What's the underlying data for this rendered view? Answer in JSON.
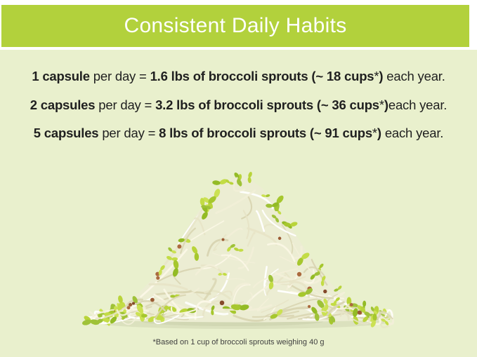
{
  "header": {
    "title": "Consistent Daily Habits"
  },
  "facts": [
    {
      "segments": [
        {
          "text": "1 capsule",
          "bold": true
        },
        {
          "text": " per day = ",
          "bold": false
        },
        {
          "text": "1.6 lbs of broccoli sprouts (~ 18 cups",
          "bold": true
        },
        {
          "text": "*",
          "bold": false
        },
        {
          "text": ")",
          "bold": true
        },
        {
          "text": " each year.",
          "bold": false
        }
      ]
    },
    {
      "segments": [
        {
          "text": "2 capsules",
          "bold": true
        },
        {
          "text": " per day = ",
          "bold": false
        },
        {
          "text": "3.2 lbs of broccoli sprouts (~ 36 cups",
          "bold": true
        },
        {
          "text": "*",
          "bold": false
        },
        {
          "text": ")",
          "bold": true
        },
        {
          "text": "each year.",
          "bold": false
        }
      ]
    },
    {
      "segments": [
        {
          "text": "5 capsules",
          "bold": true
        },
        {
          "text": " per day = ",
          "bold": false
        },
        {
          "text": "8 lbs of broccoli sprouts (~ 91 cups",
          "bold": true
        },
        {
          "text": "*",
          "bold": false
        },
        {
          "text": ")",
          "bold": true
        },
        {
          "text": " each year.",
          "bold": false
        }
      ]
    }
  ],
  "footnote": "*Based on 1 cup of broccoli sprouts weighing 40 g",
  "colors": {
    "header_bg": "#b2d13c",
    "header_text": "#ffffff",
    "panel_bg": "#e9f0cd",
    "body_text": "#1f1f1f",
    "footnote_text": "#3f3f3f"
  },
  "sprouts_image": {
    "description": "pile of fresh broccoli sprouts with tangled cream stems, yellow-green leaves and brown seed hulls",
    "palette": {
      "stems": [
        "#fbf7e6",
        "#f2efd8",
        "#e7e4c7",
        "#d9d5b2",
        "#ffffff"
      ],
      "leaves": [
        "#b9d43a",
        "#a6c72e",
        "#cbe153",
        "#93bb25",
        "#9fc238",
        "#c3dc45"
      ],
      "seeds": [
        "#9a5a33",
        "#84492a",
        "#ab6a3e"
      ],
      "body": "#ecedd3",
      "shadow": "#9aa378"
    }
  }
}
